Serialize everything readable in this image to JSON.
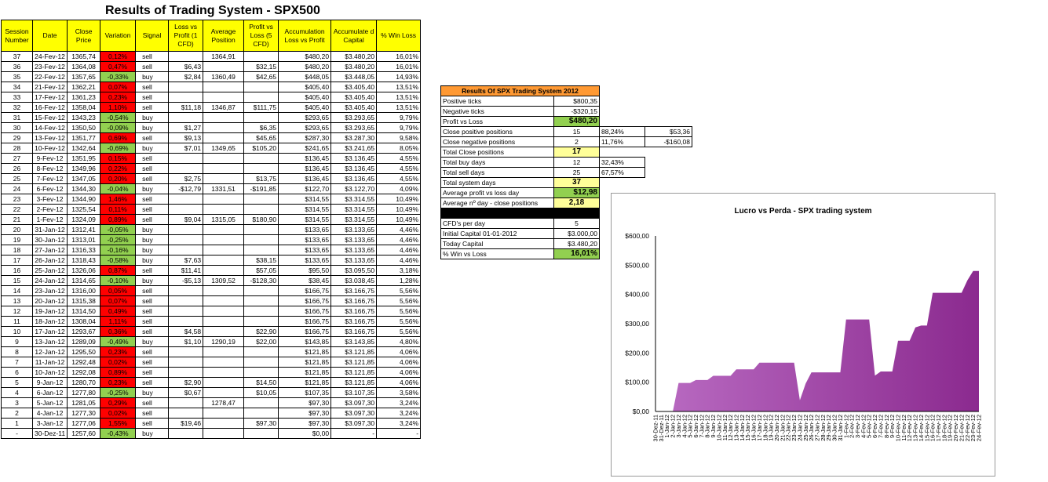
{
  "title": "Results of Trading System -  SPX500",
  "main_table": {
    "headers": [
      "Session Number",
      "Date",
      "Close Price",
      "Variation",
      "Signal",
      "Loss vs Profit (1 CFD)",
      "Average Position",
      "Profit vs Loss (5 CFD)",
      "Accumulation Loss vs Profit",
      "Accumulate d Capital",
      "% Win Loss"
    ],
    "rows": [
      {
        "n": "37",
        "date": "24-Fev-12",
        "close": "1365,74",
        "var": "0,12%",
        "vc": "red",
        "sig": "sell",
        "lp": "",
        "avg": "1364,91",
        "pl": "",
        "acc": "$480,20",
        "cap": "$3.480,20",
        "win": "16,01%"
      },
      {
        "n": "36",
        "date": "23-Fev-12",
        "close": "1364,08",
        "var": "0,47%",
        "vc": "red",
        "sig": "sell",
        "lp": "$6,43",
        "avg": "",
        "pl": "$32,15",
        "acc": "$480,20",
        "cap": "$3.480,20",
        "win": "16,01%"
      },
      {
        "n": "35",
        "date": "22-Fev-12",
        "close": "1357,65",
        "var": "-0,33%",
        "vc": "green",
        "sig": "buy",
        "lp": "$2,84",
        "avg": "1360,49",
        "pl": "$42,65",
        "acc": "$448,05",
        "cap": "$3.448,05",
        "win": "14,93%"
      },
      {
        "n": "34",
        "date": "21-Fev-12",
        "close": "1362,21",
        "var": "0,07%",
        "vc": "red",
        "sig": "sell",
        "lp": "",
        "avg": "",
        "pl": "",
        "acc": "$405,40",
        "cap": "$3.405,40",
        "win": "13,51%"
      },
      {
        "n": "33",
        "date": "17-Fev-12",
        "close": "1361,23",
        "var": "0,23%",
        "vc": "red",
        "sig": "sell",
        "lp": "",
        "avg": "",
        "pl": "",
        "acc": "$405,40",
        "cap": "$3.405,40",
        "win": "13,51%"
      },
      {
        "n": "32",
        "date": "16-Fev-12",
        "close": "1358,04",
        "var": "1,10%",
        "vc": "red",
        "sig": "sell",
        "lp": "$11,18",
        "avg": "1346,87",
        "pl": "$111,75",
        "acc": "$405,40",
        "cap": "$3.405,40",
        "win": "13,51%"
      },
      {
        "n": "31",
        "date": "15-Fev-12",
        "close": "1343,23",
        "var": "-0,54%",
        "vc": "green",
        "sig": "buy",
        "lp": "",
        "avg": "",
        "pl": "",
        "acc": "$293,65",
        "cap": "$3.293,65",
        "win": "9,79%"
      },
      {
        "n": "30",
        "date": "14-Fev-12",
        "close": "1350,50",
        "var": "-0,09%",
        "vc": "green",
        "sig": "buy",
        "lp": "$1,27",
        "avg": "",
        "pl": "$6,35",
        "acc": "$293,65",
        "cap": "$3.293,65",
        "win": "9,79%"
      },
      {
        "n": "29",
        "date": "13-Fev-12",
        "close": "1351,77",
        "var": "0,69%",
        "vc": "red",
        "sig": "sell",
        "lp": "$9,13",
        "avg": "",
        "pl": "$45,65",
        "acc": "$287,30",
        "cap": "$3.287,30",
        "win": "9,58%"
      },
      {
        "n": "28",
        "date": "10-Fev-12",
        "close": "1342,64",
        "var": "-0,69%",
        "vc": "green",
        "sig": "buy",
        "lp": "$7,01",
        "avg": "1349,65",
        "pl": "$105,20",
        "acc": "$241,65",
        "cap": "$3.241,65",
        "win": "8,05%"
      },
      {
        "n": "27",
        "date": "9-Fev-12",
        "close": "1351,95",
        "var": "0,15%",
        "vc": "red",
        "sig": "sell",
        "lp": "",
        "avg": "",
        "pl": "",
        "acc": "$136,45",
        "cap": "$3.136,45",
        "win": "4,55%"
      },
      {
        "n": "26",
        "date": "8-Fev-12",
        "close": "1349,96",
        "var": "0,22%",
        "vc": "red",
        "sig": "sell",
        "lp": "",
        "avg": "",
        "pl": "",
        "acc": "$136,45",
        "cap": "$3.136,45",
        "win": "4,55%"
      },
      {
        "n": "25",
        "date": "7-Fev-12",
        "close": "1347,05",
        "var": "0,20%",
        "vc": "red",
        "sig": "sell",
        "lp": "$2,75",
        "avg": "",
        "pl": "$13,75",
        "acc": "$136,45",
        "cap": "$3.136,45",
        "win": "4,55%"
      },
      {
        "n": "24",
        "date": "6-Fev-12",
        "close": "1344,30",
        "var": "-0,04%",
        "vc": "green",
        "sig": "buy",
        "lp": "-$12,79",
        "avg": "1331,51",
        "pl": "-$191,85",
        "acc": "$122,70",
        "cap": "$3.122,70",
        "win": "4,09%"
      },
      {
        "n": "23",
        "date": "3-Fev-12",
        "close": "1344,90",
        "var": "1,46%",
        "vc": "red",
        "sig": "sell",
        "lp": "",
        "avg": "",
        "pl": "",
        "acc": "$314,55",
        "cap": "$3.314,55",
        "win": "10,49%"
      },
      {
        "n": "22",
        "date": "2-Fev-12",
        "close": "1325,54",
        "var": "0,11%",
        "vc": "red",
        "sig": "sell",
        "lp": "",
        "avg": "",
        "pl": "",
        "acc": "$314,55",
        "cap": "$3.314,55",
        "win": "10,49%"
      },
      {
        "n": "21",
        "date": "1-Fev-12",
        "close": "1324,09",
        "var": "0,89%",
        "vc": "red",
        "sig": "sell",
        "lp": "$9,04",
        "avg": "1315,05",
        "pl": "$180,90",
        "acc": "$314,55",
        "cap": "$3.314,55",
        "win": "10,49%"
      },
      {
        "n": "20",
        "date": "31-Jan-12",
        "close": "1312,41",
        "var": "-0,05%",
        "vc": "green",
        "sig": "buy",
        "lp": "",
        "avg": "",
        "pl": "",
        "acc": "$133,65",
        "cap": "$3.133,65",
        "win": "4,46%"
      },
      {
        "n": "19",
        "date": "30-Jan-12",
        "close": "1313,01",
        "var": "-0,25%",
        "vc": "green",
        "sig": "buy",
        "lp": "",
        "avg": "",
        "pl": "",
        "acc": "$133,65",
        "cap": "$3.133,65",
        "win": "4,46%"
      },
      {
        "n": "18",
        "date": "27-Jan-12",
        "close": "1316,33",
        "var": "-0,16%",
        "vc": "green",
        "sig": "buy",
        "lp": "",
        "avg": "",
        "pl": "",
        "acc": "$133,65",
        "cap": "$3.133,65",
        "win": "4,46%"
      },
      {
        "n": "17",
        "date": "26-Jan-12",
        "close": "1318,43",
        "var": "-0,58%",
        "vc": "green",
        "sig": "buy",
        "lp": "$7,63",
        "avg": "",
        "pl": "$38,15",
        "acc": "$133,65",
        "cap": "$3.133,65",
        "win": "4,46%"
      },
      {
        "n": "16",
        "date": "25-Jan-12",
        "close": "1326,06",
        "var": "0,87%",
        "vc": "red",
        "sig": "sell",
        "lp": "$11,41",
        "avg": "",
        "pl": "$57,05",
        "acc": "$95,50",
        "cap": "$3.095,50",
        "win": "3,18%"
      },
      {
        "n": "15",
        "date": "24-Jan-12",
        "close": "1314,65",
        "var": "-0,10%",
        "vc": "green",
        "sig": "buy",
        "lp": "-$5,13",
        "avg": "1309,52",
        "pl": "-$128,30",
        "acc": "$38,45",
        "cap": "$3.038,45",
        "win": "1,28%"
      },
      {
        "n": "14",
        "date": "23-Jan-12",
        "close": "1316,00",
        "var": "0,05%",
        "vc": "red",
        "sig": "sell",
        "lp": "",
        "avg": "",
        "pl": "",
        "acc": "$166,75",
        "cap": "$3.166,75",
        "win": "5,56%"
      },
      {
        "n": "13",
        "date": "20-Jan-12",
        "close": "1315,38",
        "var": "0,07%",
        "vc": "red",
        "sig": "sell",
        "lp": "",
        "avg": "",
        "pl": "",
        "acc": "$166,75",
        "cap": "$3.166,75",
        "win": "5,56%"
      },
      {
        "n": "12",
        "date": "19-Jan-12",
        "close": "1314,50",
        "var": "0,49%",
        "vc": "red",
        "sig": "sell",
        "lp": "",
        "avg": "",
        "pl": "",
        "acc": "$166,75",
        "cap": "$3.166,75",
        "win": "5,56%"
      },
      {
        "n": "11",
        "date": "18-Jan-12",
        "close": "1308,04",
        "var": "1,11%",
        "vc": "red",
        "sig": "sell",
        "lp": "",
        "avg": "",
        "pl": "",
        "acc": "$166,75",
        "cap": "$3.166,75",
        "win": "5,56%"
      },
      {
        "n": "10",
        "date": "17-Jan-12",
        "close": "1293,67",
        "var": "0,36%",
        "vc": "red",
        "sig": "sell",
        "lp": "$4,58",
        "avg": "",
        "pl": "$22,90",
        "acc": "$166,75",
        "cap": "$3.166,75",
        "win": "5,56%"
      },
      {
        "n": "9",
        "date": "13-Jan-12",
        "close": "1289,09",
        "var": "-0,49%",
        "vc": "green",
        "sig": "buy",
        "lp": "$1,10",
        "avg": "1290,19",
        "pl": "$22,00",
        "acc": "$143,85",
        "cap": "$3.143,85",
        "win": "4,80%"
      },
      {
        "n": "8",
        "date": "12-Jan-12",
        "close": "1295,50",
        "var": "0,23%",
        "vc": "red",
        "sig": "sell",
        "lp": "",
        "avg": "",
        "pl": "",
        "acc": "$121,85",
        "cap": "$3.121,85",
        "win": "4,06%"
      },
      {
        "n": "7",
        "date": "11-Jan-12",
        "close": "1292,48",
        "var": "0,02%",
        "vc": "red",
        "sig": "sell",
        "lp": "",
        "avg": "",
        "pl": "",
        "acc": "$121,85",
        "cap": "$3.121,85",
        "win": "4,06%"
      },
      {
        "n": "6",
        "date": "10-Jan-12",
        "close": "1292,08",
        "var": "0,89%",
        "vc": "red",
        "sig": "sell",
        "lp": "",
        "avg": "",
        "pl": "",
        "acc": "$121,85",
        "cap": "$3.121,85",
        "win": "4,06%"
      },
      {
        "n": "5",
        "date": "9-Jan-12",
        "close": "1280,70",
        "var": "0,23%",
        "vc": "red",
        "sig": "sell",
        "lp": "$2,90",
        "avg": "",
        "pl": "$14,50",
        "acc": "$121,85",
        "cap": "$3.121,85",
        "win": "4,06%"
      },
      {
        "n": "4",
        "date": "6-Jan-12",
        "close": "1277,80",
        "var": "-0,25%",
        "vc": "green",
        "sig": "buy",
        "lp": "$0,67",
        "avg": "",
        "pl": "$10,05",
        "acc": "$107,35",
        "cap": "$3.107,35",
        "win": "3,58%"
      },
      {
        "n": "3",
        "date": "5-Jan-12",
        "close": "1281,05",
        "var": "0,29%",
        "vc": "red",
        "sig": "sell",
        "lp": "",
        "avg": "1278,47",
        "pl": "",
        "acc": "$97,30",
        "cap": "$3.097,30",
        "win": "3,24%"
      },
      {
        "n": "2",
        "date": "4-Jan-12",
        "close": "1277,30",
        "var": "0,02%",
        "vc": "red",
        "sig": "sell",
        "lp": "",
        "avg": "",
        "pl": "",
        "acc": "$97,30",
        "cap": "$3.097,30",
        "win": "3,24%"
      },
      {
        "n": "1",
        "date": "3-Jan-12",
        "close": "1277,06",
        "var": "1,55%",
        "vc": "red",
        "sig": "sell",
        "lp": "$19,46",
        "avg": "",
        "pl": "$97,30",
        "acc": "$97,30",
        "cap": "$3.097,30",
        "win": "3,24%"
      },
      {
        "n": "-",
        "date": "30-Dez-11",
        "close": "1257,60",
        "var": "-0,43%",
        "vc": "green",
        "sig": "buy",
        "lp": "",
        "avg": "",
        "pl": "",
        "acc": "$0,00",
        "cap": "-",
        "win": "-"
      }
    ]
  },
  "summary": {
    "header": "Results Of SPX Trading System 2012",
    "rows": [
      {
        "label": "Positive ticks",
        "v1": "$800,35",
        "v2": "",
        "v3": "",
        "style": ""
      },
      {
        "label": "Negative ticks",
        "v1": "-$320,15",
        "v2": "",
        "v3": "",
        "style": ""
      },
      {
        "label": "Profit vs Loss",
        "v1": "$480,20",
        "v2": "",
        "v3": "",
        "style": "hl-g"
      },
      {
        "label": "Close positive positions",
        "v1": "15",
        "v2": "88,24%",
        "v3": "$53,36",
        "style": "c"
      },
      {
        "label": "Close negative positions",
        "v1": "2",
        "v2": "11,76%",
        "v3": "-$160,08",
        "style": "c"
      },
      {
        "label": "Total Close positions",
        "v1": "17",
        "v2": "",
        "v3": "",
        "style": "hl-y"
      },
      {
        "label": "Total buy days",
        "v1": "12",
        "v2": "32,43%",
        "v3": "",
        "style": "c"
      },
      {
        "label": "Total sell days",
        "v1": "25",
        "v2": "67,57%",
        "v3": "",
        "style": "c"
      },
      {
        "label": "Total system days",
        "v1": "37",
        "v2": "",
        "v3": "",
        "style": "hl-y"
      },
      {
        "label": "Average profit vs loss day",
        "v1": "$12,98",
        "v2": "",
        "v3": "",
        "style": "hl-g"
      },
      {
        "label": "Average nº day - close positions",
        "v1": "2,18",
        "v2": "",
        "v3": "",
        "style": "hl-y"
      },
      {
        "label": "",
        "v1": "",
        "v2": "",
        "v3": "",
        "style": "black"
      },
      {
        "label": "CFD's per day",
        "v1": "5",
        "v2": "",
        "v3": "",
        "style": "c"
      },
      {
        "label": "Initial Capital 01-01-2012",
        "v1": "$3.000,00",
        "v2": "",
        "v3": "",
        "style": ""
      },
      {
        "label": "Today Capital",
        "v1": "$3.480,20",
        "v2": "",
        "v3": "",
        "style": ""
      },
      {
        "label": "% Win vs Loss",
        "v1": "16,01%",
        "v2": "",
        "v3": "",
        "style": "hl-g"
      }
    ]
  },
  "chart_data": {
    "type": "area",
    "title": "Lucro vs Perda - SPX trading system",
    "x": [
      "30-Dez-11",
      "31-Dez-11",
      "1-Jan-12",
      "2-Jan-12",
      "3-Jan-12",
      "4-Jan-12",
      "5-Jan-12",
      "6-Jan-12",
      "7-Jan-12",
      "8-Jan-12",
      "9-Jan-12",
      "10-Jan-12",
      "11-Jan-12",
      "12-Jan-12",
      "13-Jan-12",
      "14-Jan-12",
      "15-Jan-12",
      "16-Jan-12",
      "17-Jan-12",
      "18-Jan-12",
      "19-Jan-12",
      "20-Jan-12",
      "21-Jan-12",
      "22-Jan-12",
      "23-Jan-12",
      "24-Jan-12",
      "25-Jan-12",
      "26-Jan-12",
      "27-Jan-12",
      "28-Jan-12",
      "29-Jan-12",
      "30-Jan-12",
      "31-Jan-12",
      "1-Fev-12",
      "2-Fev-12",
      "3-Fev-12",
      "4-Fev-12",
      "5-Fev-12",
      "6-Fev-12",
      "7-Fev-12",
      "8-Fev-12",
      "9-Fev-12",
      "10-Fev-12",
      "11-Fev-12",
      "12-Fev-12",
      "13-Fev-12",
      "14-Fev-12",
      "15-Fev-12",
      "16-Fev-12",
      "17-Fev-12",
      "18-Fev-12",
      "19-Fev-12",
      "20-Fev-12",
      "21-Fev-12",
      "22-Fev-12",
      "23-Fev-12",
      "24-Fev-12"
    ],
    "values": [
      0,
      0,
      0,
      0,
      97.3,
      97.3,
      97.3,
      107.35,
      107.35,
      107.35,
      121.85,
      121.85,
      121.85,
      121.85,
      143.85,
      143.85,
      143.85,
      143.85,
      166.75,
      166.75,
      166.75,
      166.75,
      166.75,
      166.75,
      166.75,
      38.45,
      95.5,
      133.65,
      133.65,
      133.65,
      133.65,
      133.65,
      133.65,
      314.55,
      314.55,
      314.55,
      314.55,
      314.55,
      122.7,
      136.45,
      136.45,
      136.45,
      241.65,
      241.65,
      241.65,
      287.3,
      293.65,
      293.65,
      405.4,
      405.4,
      405.4,
      405.4,
      405.4,
      405.4,
      448.05,
      480.2,
      480.2
    ],
    "ylim": [
      0,
      600
    ],
    "yticks": [
      "$0,00",
      "$100,00",
      "$200,00",
      "$300,00",
      "$400,00",
      "$500,00",
      "$600,00"
    ],
    "color": "#8b2a8f"
  }
}
